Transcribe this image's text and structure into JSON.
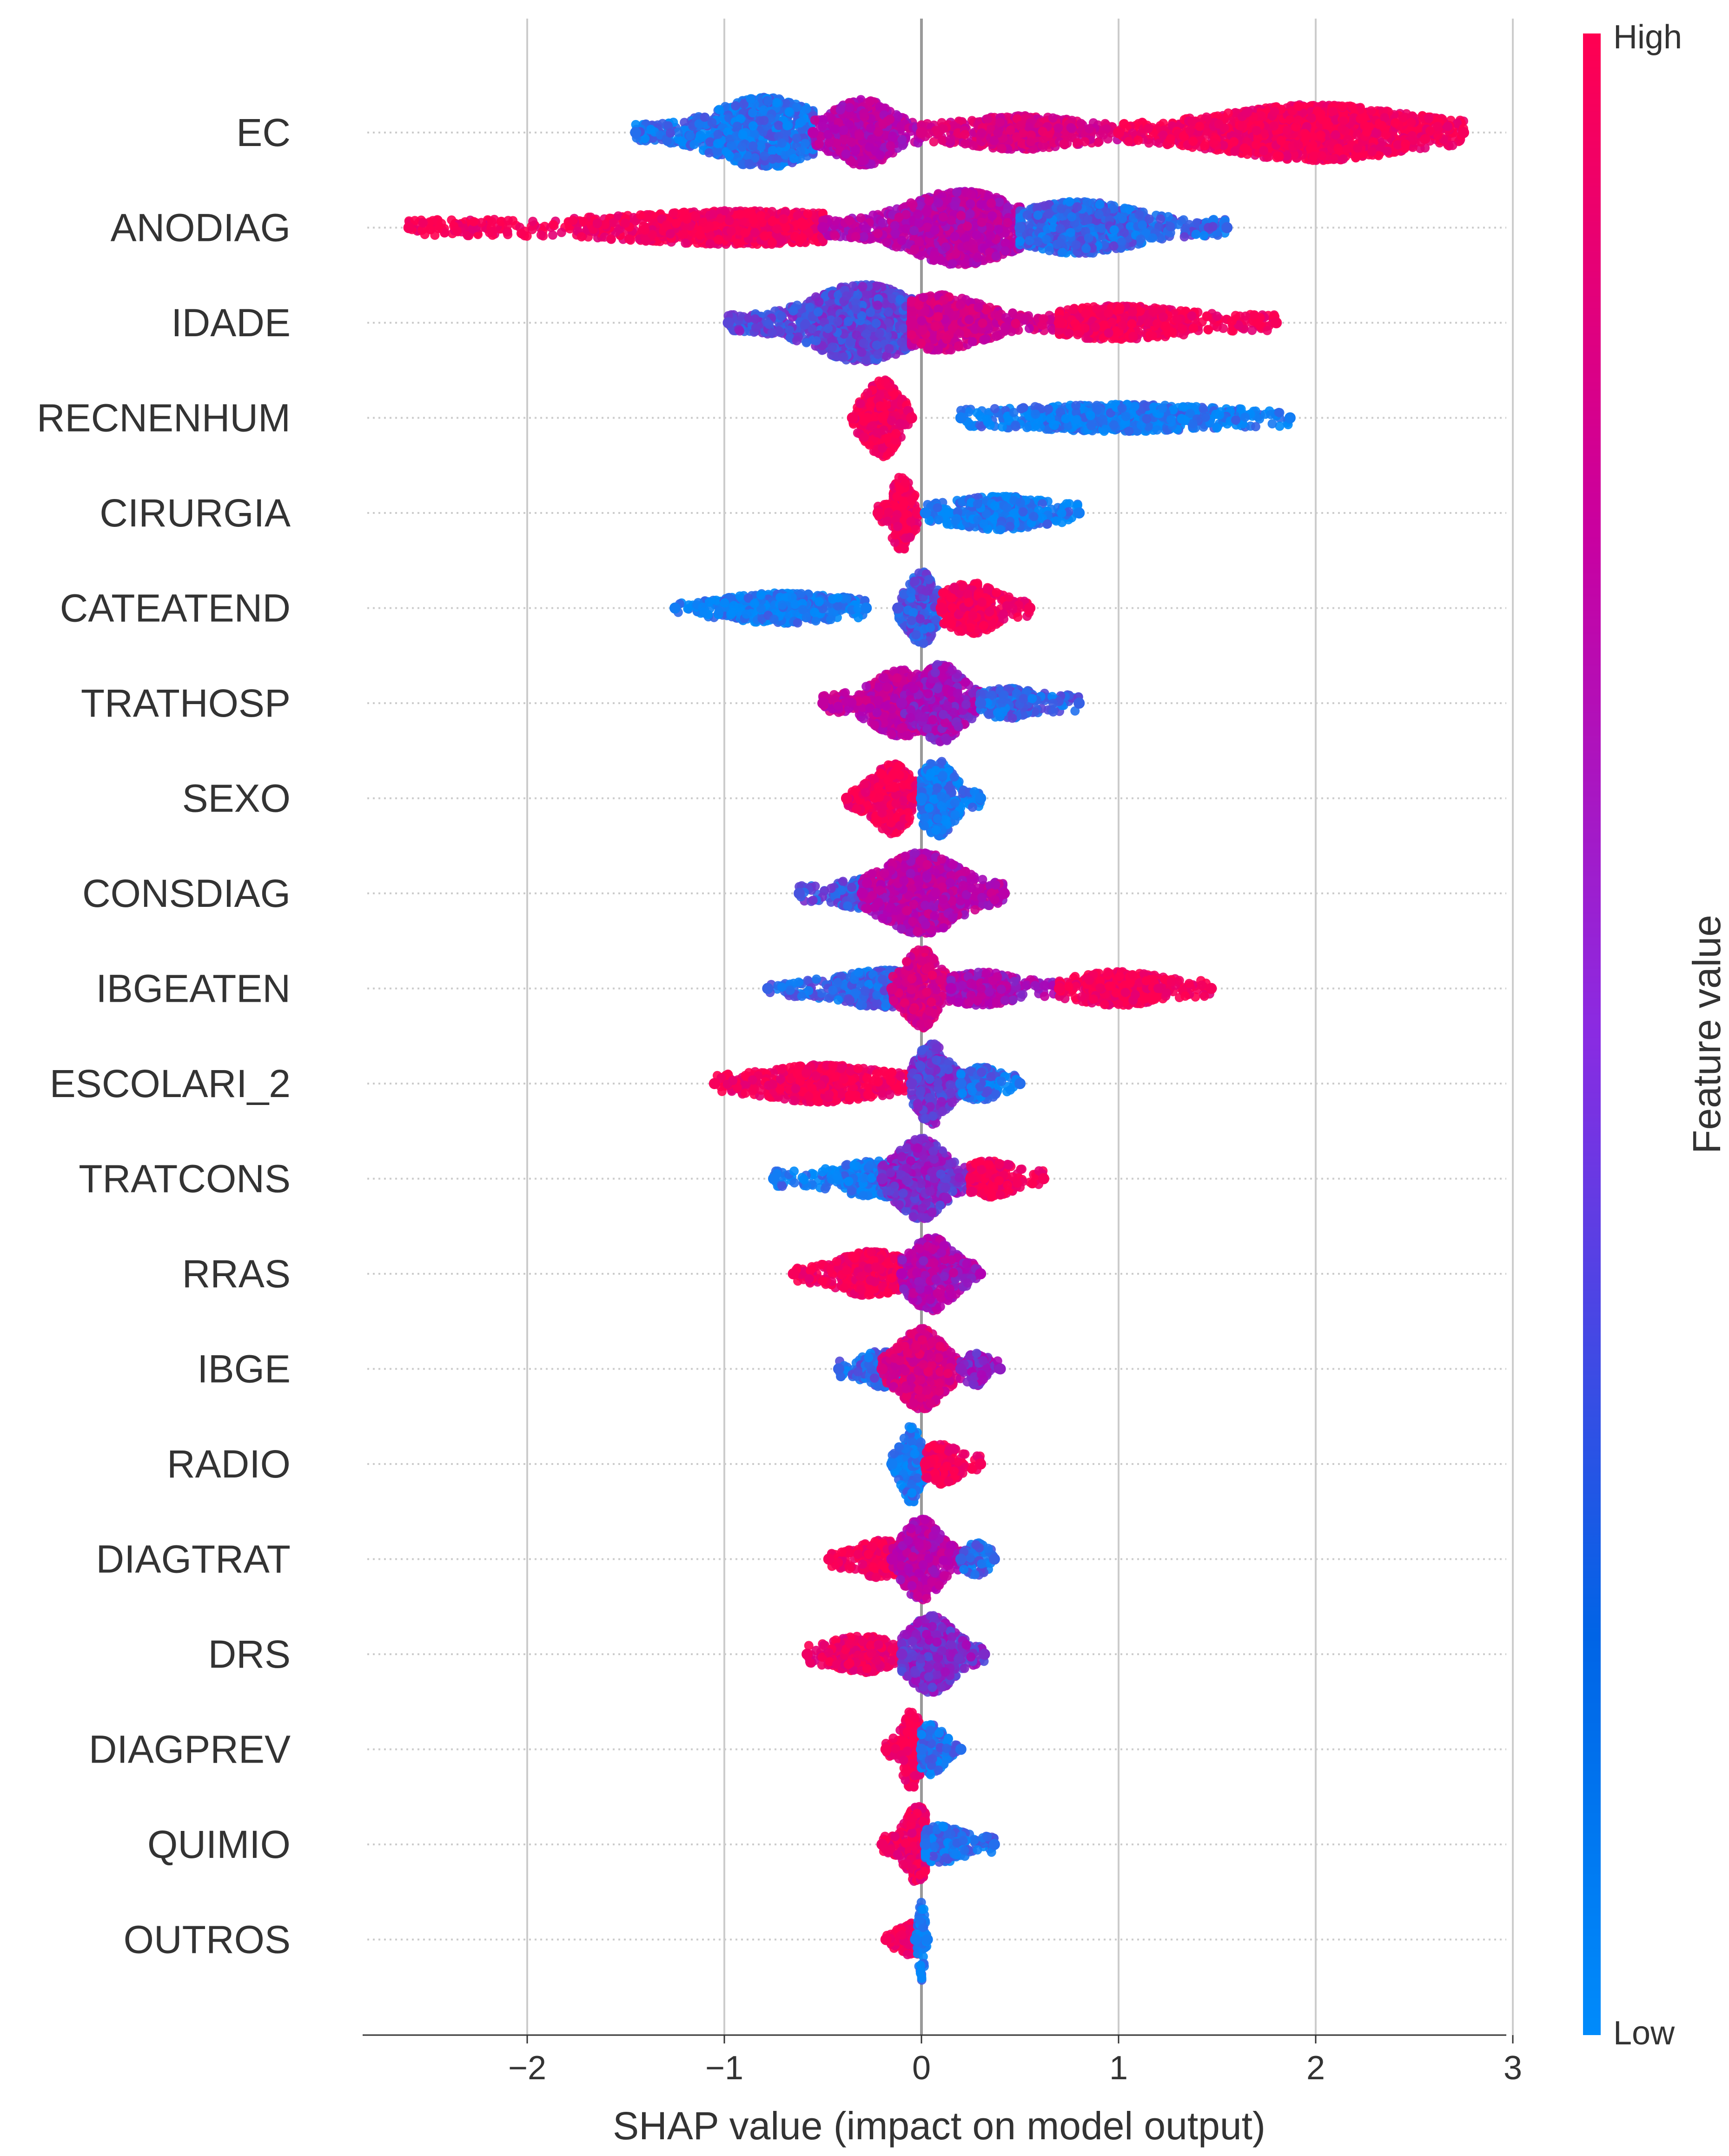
{
  "chart_data": {
    "type": "scatter",
    "subtype": "shap-beeswarm",
    "title": "",
    "xlabel": "SHAP value (impact on model output)",
    "ylabel": "",
    "xlim": [
      -2.85,
      3.0
    ],
    "x_ticks": [
      {
        "value": -2,
        "label": "−2"
      },
      {
        "value": -1,
        "label": "−1"
      },
      {
        "value": 0,
        "label": "0"
      },
      {
        "value": 1,
        "label": "1"
      },
      {
        "value": 2,
        "label": "2"
      },
      {
        "value": 3,
        "label": "3"
      }
    ],
    "grid": true,
    "colorbar": {
      "label": "Feature value",
      "high_label": "High",
      "low_label": "Low",
      "high_color": "#ff0051",
      "mid_color": "#b300b3",
      "low_color": "#008bfb"
    },
    "features": [
      {
        "name": "EC",
        "min": -1.45,
        "max": 2.75,
        "clusters": [
          {
            "s": -1.45,
            "e": -0.55,
            "c": -0.8,
            "w": 0.75,
            "col": 0.1
          },
          {
            "s": -0.55,
            "e": 0.0,
            "c": -0.3,
            "w": 0.7,
            "col": 0.55
          },
          {
            "s": 0.0,
            "e": 1.0,
            "c": 0.5,
            "w": 0.25,
            "col": 0.75
          },
          {
            "s": 1.0,
            "e": 2.75,
            "c": 2.0,
            "w": 0.55,
            "col": 0.95
          }
        ]
      },
      {
        "name": "ANODIAG",
        "min": -2.6,
        "max": 1.55,
        "clusters": [
          {
            "s": -2.6,
            "e": -0.5,
            "c": -0.9,
            "w": 0.25,
            "col": 0.95
          },
          {
            "s": -0.5,
            "e": 0.5,
            "c": 0.2,
            "w": 0.8,
            "col": 0.55
          },
          {
            "s": 0.5,
            "e": 1.55,
            "c": 0.8,
            "w": 0.5,
            "col": 0.15
          }
        ]
      },
      {
        "name": "IDADE",
        "min": -0.98,
        "max": 1.8,
        "clusters": [
          {
            "s": -0.98,
            "e": -0.05,
            "c": -0.3,
            "w": 0.85,
            "col": 0.25
          },
          {
            "s": -0.05,
            "e": 0.7,
            "c": 0.1,
            "w": 0.55,
            "col": 0.7
          },
          {
            "s": 0.7,
            "e": 1.8,
            "c": 1.0,
            "w": 0.25,
            "col": 0.95
          }
        ]
      },
      {
        "name": "RECNENHUM",
        "min": -0.35,
        "max": 1.87,
        "clusters": [
          {
            "s": -0.35,
            "e": -0.05,
            "c": -0.2,
            "w": 0.85,
            "col": 0.95
          },
          {
            "s": 0.2,
            "e": 1.87,
            "c": 1.0,
            "w": 0.16,
            "col": 0.05
          }
        ]
      },
      {
        "name": "CIRURGIA",
        "min": -0.22,
        "max": 0.8,
        "clusters": [
          {
            "s": -0.22,
            "e": -0.02,
            "c": -0.1,
            "w": 0.8,
            "col": 0.95
          },
          {
            "s": 0.02,
            "e": 0.8,
            "c": 0.4,
            "w": 0.25,
            "col": 0.05
          }
        ]
      },
      {
        "name": "CATEATEND",
        "min": -1.25,
        "max": 0.55,
        "clusters": [
          {
            "s": -1.25,
            "e": -0.28,
            "c": -0.7,
            "w": 0.2,
            "col": 0.05
          },
          {
            "s": -0.12,
            "e": 0.12,
            "c": 0.0,
            "w": 0.8,
            "col": 0.2
          },
          {
            "s": 0.1,
            "e": 0.55,
            "c": 0.25,
            "w": 0.5,
            "col": 0.95
          }
        ]
      },
      {
        "name": "TRATHOSP",
        "min": -0.5,
        "max": 0.8,
        "clusters": [
          {
            "s": -0.5,
            "e": 0.05,
            "c": -0.1,
            "w": 0.7,
            "col": 0.6
          },
          {
            "s": -0.1,
            "e": 0.3,
            "c": 0.1,
            "w": 0.85,
            "col": 0.45
          },
          {
            "s": 0.3,
            "e": 0.8,
            "c": 0.45,
            "w": 0.2,
            "col": 0.15
          }
        ]
      },
      {
        "name": "SEXO",
        "min": -0.38,
        "max": 0.3,
        "clusters": [
          {
            "s": -0.38,
            "e": -0.03,
            "c": -0.15,
            "w": 0.75,
            "col": 0.95
          },
          {
            "s": 0.0,
            "e": 0.3,
            "c": 0.08,
            "w": 0.85,
            "col": 0.05
          }
        ]
      },
      {
        "name": "CONSDIAG",
        "min": -0.62,
        "max": 0.42,
        "clusters": [
          {
            "s": -0.62,
            "e": -0.2,
            "c": -0.3,
            "w": 0.2,
            "col": 0.2
          },
          {
            "s": -0.3,
            "e": 0.42,
            "c": 0.0,
            "w": 0.9,
            "col": 0.55
          }
        ]
      },
      {
        "name": "IBGEATEN",
        "min": -0.78,
        "max": 1.47,
        "clusters": [
          {
            "s": -0.78,
            "e": -0.05,
            "c": -0.2,
            "w": 0.3,
            "col": 0.15
          },
          {
            "s": -0.15,
            "e": 0.15,
            "c": 0.0,
            "w": 0.9,
            "col": 0.75
          },
          {
            "s": 0.15,
            "e": 0.7,
            "c": 0.3,
            "w": 0.25,
            "col": 0.5
          },
          {
            "s": 0.7,
            "e": 1.47,
            "c": 1.0,
            "w": 0.25,
            "col": 0.95
          }
        ]
      },
      {
        "name": "ESCOLARI_2",
        "min": -1.05,
        "max": 0.5,
        "clusters": [
          {
            "s": -1.05,
            "e": -0.05,
            "c": -0.5,
            "w": 0.3,
            "col": 0.95
          },
          {
            "s": -0.05,
            "e": 0.25,
            "c": 0.05,
            "w": 0.9,
            "col": 0.3
          },
          {
            "s": 0.2,
            "e": 0.5,
            "c": 0.3,
            "w": 0.25,
            "col": 0.1
          }
        ]
      },
      {
        "name": "TRATCONS",
        "min": -0.75,
        "max": 0.62,
        "clusters": [
          {
            "s": -0.75,
            "e": -0.05,
            "c": -0.2,
            "w": 0.3,
            "col": 0.05
          },
          {
            "s": -0.2,
            "e": 0.25,
            "c": 0.0,
            "w": 0.9,
            "col": 0.35
          },
          {
            "s": 0.25,
            "e": 0.62,
            "c": 0.35,
            "w": 0.3,
            "col": 0.95
          }
        ]
      },
      {
        "name": "RRAS",
        "min": -0.65,
        "max": 0.3,
        "clusters": [
          {
            "s": -0.65,
            "e": -0.05,
            "c": -0.25,
            "w": 0.4,
            "col": 0.95
          },
          {
            "s": -0.1,
            "e": 0.3,
            "c": 0.05,
            "w": 0.8,
            "col": 0.5
          }
        ]
      },
      {
        "name": "IBGE",
        "min": -0.42,
        "max": 0.4,
        "clusters": [
          {
            "s": -0.42,
            "e": -0.1,
            "c": -0.2,
            "w": 0.3,
            "col": 0.15
          },
          {
            "s": -0.2,
            "e": 0.2,
            "c": 0.0,
            "w": 0.9,
            "col": 0.75
          },
          {
            "s": 0.2,
            "e": 0.4,
            "c": 0.28,
            "w": 0.25,
            "col": 0.4
          }
        ]
      },
      {
        "name": "RADIO",
        "min": -0.15,
        "max": 0.3,
        "clusters": [
          {
            "s": -0.15,
            "e": 0.02,
            "c": -0.05,
            "w": 0.85,
            "col": 0.05
          },
          {
            "s": 0.02,
            "e": 0.3,
            "c": 0.1,
            "w": 0.35,
            "col": 0.95
          }
        ]
      },
      {
        "name": "DIAGTRAT",
        "min": -0.47,
        "max": 0.37,
        "clusters": [
          {
            "s": -0.47,
            "e": -0.05,
            "c": -0.2,
            "w": 0.3,
            "col": 0.95
          },
          {
            "s": -0.15,
            "e": 0.2,
            "c": 0.0,
            "w": 0.9,
            "col": 0.55
          },
          {
            "s": 0.2,
            "e": 0.37,
            "c": 0.28,
            "w": 0.25,
            "col": 0.15
          }
        ]
      },
      {
        "name": "DRS",
        "min": -0.58,
        "max": 0.32,
        "clusters": [
          {
            "s": -0.58,
            "e": -0.05,
            "c": -0.3,
            "w": 0.3,
            "col": 0.9
          },
          {
            "s": -0.1,
            "e": 0.32,
            "c": 0.05,
            "w": 0.85,
            "col": 0.35
          }
        ]
      },
      {
        "name": "DIAGPREV",
        "min": -0.18,
        "max": 0.2,
        "clusters": [
          {
            "s": -0.18,
            "e": 0.0,
            "c": -0.05,
            "w": 0.85,
            "col": 0.95
          },
          {
            "s": 0.0,
            "e": 0.2,
            "c": 0.05,
            "w": 0.5,
            "col": 0.1
          }
        ]
      },
      {
        "name": "QUIMIO",
        "min": -0.2,
        "max": 0.37,
        "clusters": [
          {
            "s": -0.2,
            "e": 0.02,
            "c": -0.02,
            "w": 0.85,
            "col": 0.9
          },
          {
            "s": 0.02,
            "e": 0.37,
            "c": 0.1,
            "w": 0.3,
            "col": 0.1
          }
        ]
      },
      {
        "name": "OUTROS",
        "min": -0.18,
        "max": 0.05,
        "clusters": [
          {
            "s": -0.18,
            "e": 0.02,
            "c": -0.05,
            "w": 0.25,
            "col": 0.95
          },
          {
            "s": -0.03,
            "e": 0.03,
            "c": 0.0,
            "w": 0.9,
            "col": 0.05
          }
        ]
      }
    ]
  }
}
